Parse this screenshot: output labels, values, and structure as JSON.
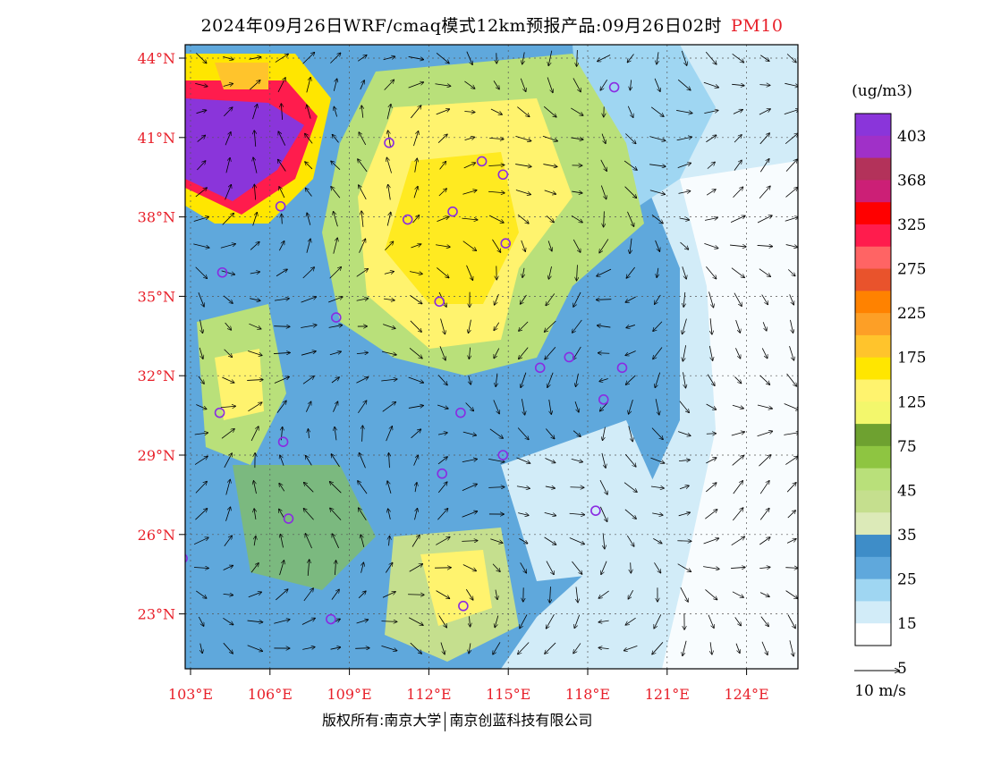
{
  "title": {
    "main": "2024年09月26日WRF/cmaq模式12km预报产品:09月26日02时",
    "pollutant": "PM10"
  },
  "map": {
    "lat_labels": [
      "44°N",
      "41°N",
      "38°N",
      "35°N",
      "32°N",
      "29°N",
      "26°N",
      "23°N"
    ],
    "lat_values": [
      44,
      41,
      38,
      35,
      32,
      29,
      26,
      23
    ],
    "lon_labels": [
      "103°E",
      "106°E",
      "109°E",
      "112°E",
      "115°E",
      "118°E",
      "121°E",
      "124°E"
    ],
    "lon_values": [
      103,
      106,
      109,
      112,
      115,
      118,
      121,
      124
    ],
    "label_color": "#e8202a",
    "cities": [
      [
        119.0,
        42.9
      ],
      [
        110.5,
        40.8
      ],
      [
        114.0,
        40.1
      ],
      [
        114.8,
        39.6
      ],
      [
        106.4,
        38.4
      ],
      [
        111.2,
        37.9
      ],
      [
        112.9,
        38.2
      ],
      [
        114.9,
        37.0
      ],
      [
        104.2,
        35.9
      ],
      [
        112.4,
        34.8
      ],
      [
        108.5,
        34.2
      ],
      [
        116.2,
        32.3
      ],
      [
        117.3,
        32.7
      ],
      [
        119.3,
        32.3
      ],
      [
        118.6,
        31.1
      ],
      [
        104.1,
        30.6
      ],
      [
        113.2,
        30.6
      ],
      [
        106.5,
        29.5
      ],
      [
        114.8,
        29.0
      ],
      [
        112.5,
        28.3
      ],
      [
        118.3,
        26.9
      ],
      [
        106.7,
        26.6
      ],
      [
        102.7,
        25.1
      ],
      [
        113.3,
        23.3
      ],
      [
        108.3,
        22.8
      ]
    ]
  },
  "legend": {
    "unit": "(ug/m3)",
    "labels": [
      "403",
      "368",
      "325",
      "275",
      "225",
      "175",
      "125",
      "75",
      "45",
      "35",
      "25",
      "15",
      "5"
    ],
    "colors": [
      "#8a35da",
      "#a030c8",
      "#b3325a",
      "#cc1f76",
      "#ff0000",
      "#ff1c4d",
      "#ff6464",
      "#e9532c",
      "#ff8200",
      "#fd9f26",
      "#ffc42c",
      "#ffe600",
      "#fff36e",
      "#f3f76c",
      "#6ea130",
      "#8ec541",
      "#b9e07a",
      "#c5df8e",
      "#dceab8",
      "#3e8dc8",
      "#5fa8dc",
      "#9fd6f2",
      "#d2ecf8",
      "#ffffff"
    ]
  },
  "wind_scale": {
    "label": "10 m/s"
  },
  "footer": {
    "left": "版权所有:南京大学",
    "right": "南京创蓝科技有限公司"
  }
}
